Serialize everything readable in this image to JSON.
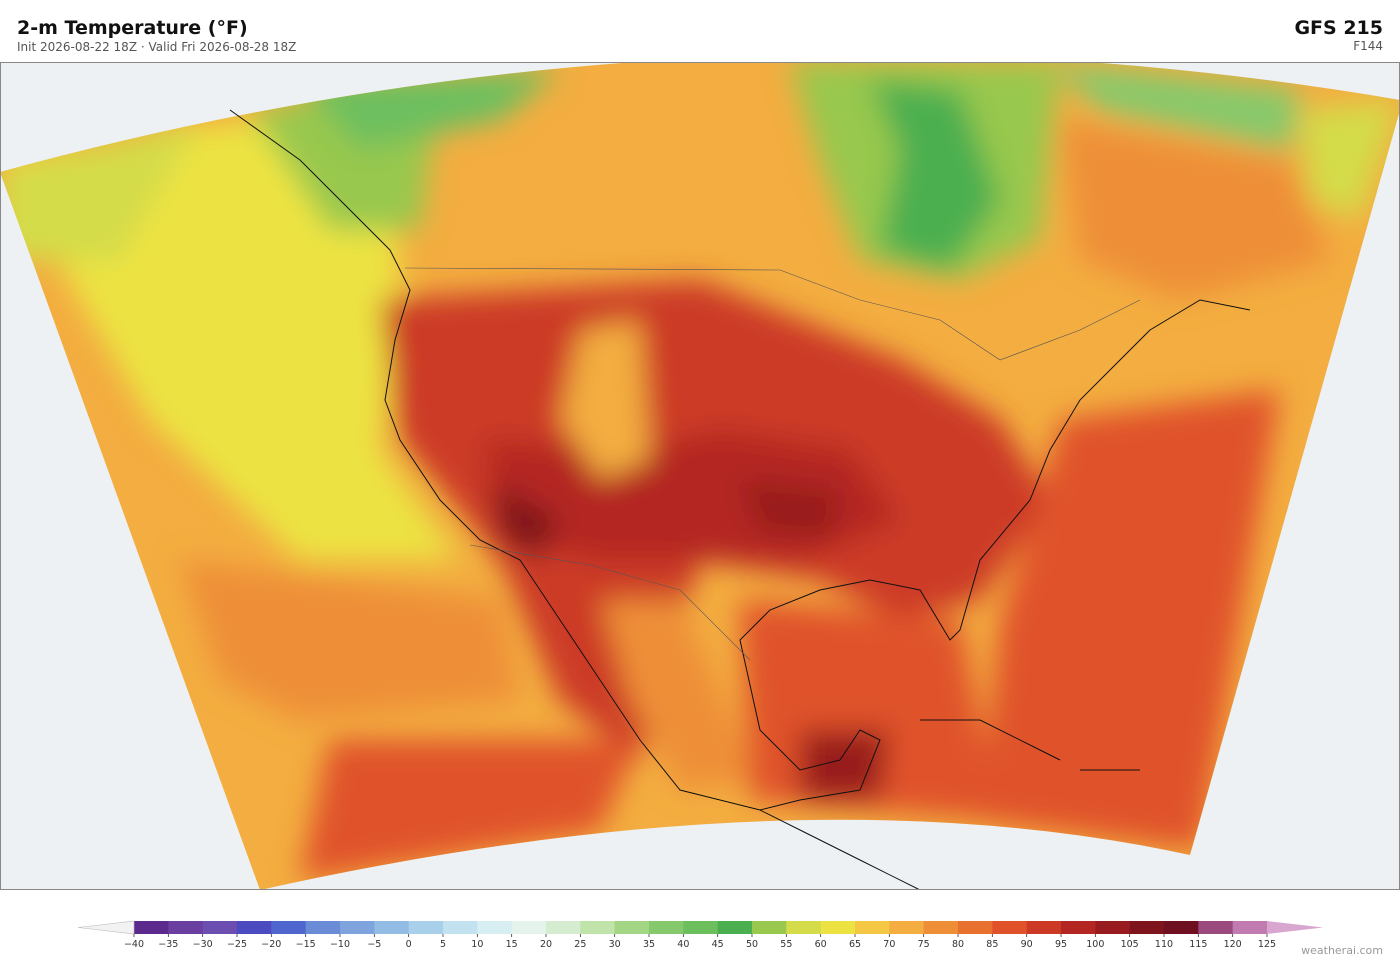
{
  "header": {
    "title": "2-m Temperature  (°F)",
    "subtitle": "Init 2026-08-22 18Z  ·  Valid Fri 2026-08-28 18Z",
    "model": "GFS  215",
    "forecast_hour": "F144"
  },
  "colorbar": {
    "ticks": [
      {
        "value": -40,
        "label": "−40"
      },
      {
        "value": -35,
        "label": "−35"
      },
      {
        "value": -30,
        "label": "−30"
      },
      {
        "value": -25,
        "label": "−25"
      },
      {
        "value": -20,
        "label": "−20"
      },
      {
        "value": -15,
        "label": "−15"
      },
      {
        "value": -10,
        "label": "−10"
      },
      {
        "value": -5,
        "label": "−5"
      },
      0,
      5,
      10,
      15,
      20,
      25,
      30,
      35,
      40,
      45,
      50,
      55,
      60,
      65,
      70,
      75,
      80,
      85,
      90,
      95,
      100,
      105,
      110,
      115,
      120,
      125
    ],
    "colors": [
      "#5b2a8c",
      "#6a3fa0",
      "#6c4db0",
      "#4b4bbf",
      "#4f66cf",
      "#6a8bd6",
      "#7fa3dc",
      "#92bce3",
      "#a8d0ea",
      "#c2e2f0",
      "#d7eef2",
      "#e4f3ec",
      "#d5ecd0",
      "#bfe3a8",
      "#a2d685",
      "#86c96c",
      "#6dbf5e",
      "#4caf4f",
      "#98c84e",
      "#d4dc4a",
      "#ece342",
      "#f4c744",
      "#f3ad40",
      "#ee8f38",
      "#e8712f",
      "#e0532a",
      "#cc3a25",
      "#b42622",
      "#981b1f",
      "#7f151c",
      "#6e1020",
      "#9a4a7d",
      "#c27bb0"
    ],
    "extend_colors": [
      "#f2f2f2",
      "#d8a6cf"
    ]
  },
  "watermark": "weatherai.com"
}
